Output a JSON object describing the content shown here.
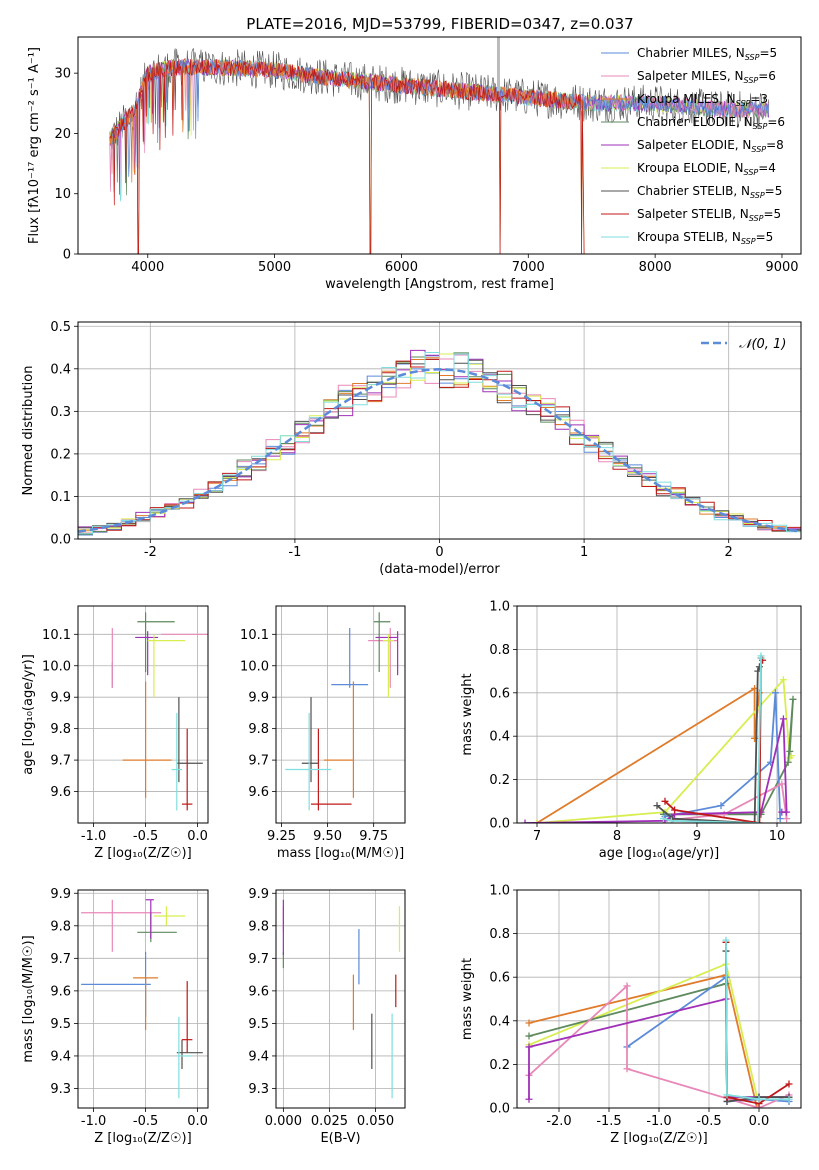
{
  "figure_title": "PLATE=2016, MJD=53799, FIBERID=0347, z=0.037",
  "legend_entries": [
    {
      "name": "Chabrier MILES, N",
      "sub": "SSP",
      "suffix": "=5",
      "color": "#5b8bd9"
    },
    {
      "name": "Salpeter MILES, N",
      "sub": "SSP",
      "suffix": "=6",
      "color": "#e888b8"
    },
    {
      "name": "Kroupa MILES, N",
      "sub": "SSP",
      "suffix": "=3",
      "color": "#e07b2a"
    },
    {
      "name": "Chabrier ELODIE, N",
      "sub": "SSP",
      "suffix": "=6",
      "color": "#5e8a5e"
    },
    {
      "name": "Salpeter ELODIE, N",
      "sub": "SSP",
      "suffix": "=8",
      "color": "#a030b8"
    },
    {
      "name": "Kroupa ELODIE, N",
      "sub": "SSP",
      "suffix": "=4",
      "color": "#d8ee50"
    },
    {
      "name": "Chabrier STELIB, N",
      "sub": "SSP",
      "suffix": "=5",
      "color": "#505050"
    },
    {
      "name": "Salpeter STELIB, N",
      "sub": "SSP",
      "suffix": "=5",
      "color": "#c01818"
    },
    {
      "name": "Kroupa STELIB, N",
      "sub": "SSP",
      "suffix": "=5",
      "color": "#80dede"
    }
  ],
  "chart_data": [
    {
      "id": "spectrum",
      "type": "line",
      "xlabel": "wavelength [Angstrom, rest frame]",
      "ylabel": "Flux [fλ10⁻¹⁷ erg cm⁻² s⁻¹ A⁻¹]",
      "xlim": [
        3450,
        9150
      ],
      "ylim": [
        0,
        36
      ],
      "xticks": [
        4000,
        5000,
        6000,
        7000,
        8000,
        9000
      ],
      "yticks": [
        0,
        10,
        20,
        30
      ],
      "legend": "top-right",
      "grid": false,
      "continuum": {
        "x": [
          3700,
          3900,
          4000,
          4200,
          4500,
          5000,
          5500,
          6000,
          6500,
          7000,
          7500,
          8000,
          8500,
          8900
        ],
        "y": [
          19,
          24,
          30,
          31,
          31,
          30.5,
          29,
          28,
          27,
          26,
          25,
          25,
          24,
          24
        ]
      },
      "drops": [
        {
          "x": 3925,
          "to": 0
        },
        {
          "x": 5755,
          "to": 0
        },
        {
          "x": 6780,
          "to": 0
        },
        {
          "x": 7420,
          "to": 0
        }
      ],
      "spike": {
        "x": 6765,
        "from": 27,
        "to": 36
      }
    },
    {
      "id": "residuals",
      "type": "step",
      "xlabel": "(data-model)/error",
      "ylabel": "Normed distribution",
      "xlim": [
        -2.5,
        2.5
      ],
      "ylim": [
        0,
        0.51
      ],
      "xticks": [
        -2,
        -1,
        0,
        1,
        2
      ],
      "yticks": [
        0,
        0.1,
        0.2,
        0.3,
        0.4,
        0.5
      ],
      "grid": true,
      "legend": "top-right",
      "reference": {
        "label": "𝒩(0, 1)",
        "mean": 0,
        "sigma": 1,
        "color": "#5b8bd9"
      },
      "bins": {
        "start": -2.5,
        "width": 0.1,
        "count": 50
      }
    },
    {
      "id": "age-vs-z",
      "type": "errorbar",
      "xlabel": "Z [log₁₀(Z/Z☉)]",
      "ylabel": "age  [log₁₀(age/yr)]",
      "xlim": [
        -1.15,
        0.1
      ],
      "ylim": [
        9.5,
        10.19
      ],
      "xticks": [
        -1.0,
        -0.5,
        0.0
      ],
      "yticks": [
        9.6,
        9.7,
        9.8,
        9.9,
        10.0,
        10.1
      ],
      "grid": true,
      "points": [
        {
          "s": 0,
          "x": -0.82,
          "xl": 1.12,
          "xh": 0.35,
          "y": 9.94,
          "yl": 9.93,
          "yh": 10.01
        },
        {
          "s": 1,
          "x": -0.82,
          "xl": 1.12,
          "xh": -0.35,
          "y": 10.1,
          "yl": 9.93,
          "yh": 10.12
        },
        {
          "s": 2,
          "x": -0.5,
          "xl": -0.72,
          "xh": -0.25,
          "y": 9.7,
          "yl": 9.58,
          "yh": 9.95
        },
        {
          "s": 3,
          "x": -0.5,
          "xl": -0.58,
          "xh": -0.22,
          "y": 10.14,
          "yl": 9.98,
          "yh": 10.17
        },
        {
          "s": 4,
          "x": -0.48,
          "xl": -0.6,
          "xh": -0.38,
          "y": 10.09,
          "yl": 9.97,
          "yh": 10.11
        },
        {
          "s": 5,
          "x": -0.42,
          "xl": -0.48,
          "xh": -0.12,
          "y": 10.08,
          "yl": 9.9,
          "yh": 10.1
        },
        {
          "s": 6,
          "x": -0.18,
          "xl": -0.2,
          "xh": 0.05,
          "y": 9.69,
          "yl": 9.63,
          "yh": 9.9
        },
        {
          "s": 7,
          "x": -0.1,
          "xl": -0.15,
          "xh": -0.05,
          "y": 9.56,
          "yl": 9.54,
          "yh": 9.8
        },
        {
          "s": 8,
          "x": -0.2,
          "xl": -0.25,
          "xh": -0.15,
          "y": 9.67,
          "yl": 9.54,
          "yh": 9.85
        }
      ]
    },
    {
      "id": "age-vs-mass",
      "type": "errorbar",
      "xlabel": "mass [log₁₀(M/M☉)]",
      "ylabel": "",
      "xlim": [
        9.22,
        9.92
      ],
      "ylim": [
        9.5,
        10.19
      ],
      "xticks": [
        9.25,
        9.5,
        9.75
      ],
      "xticklabels": [
        "9.25",
        "9.50",
        "9.75"
      ],
      "yticks": [
        9.6,
        9.7,
        9.8,
        9.9,
        10.0,
        10.1
      ],
      "grid": true,
      "points": [
        {
          "s": 0,
          "x": 9.62,
          "xl": 9.52,
          "xh": 9.72,
          "y": 9.94,
          "yl": 9.93,
          "yh": 10.12
        },
        {
          "s": 1,
          "x": 9.84,
          "xl": 9.72,
          "xh": 9.88,
          "y": 10.08,
          "yl": 9.93,
          "yh": 10.12
        },
        {
          "s": 2,
          "x": 9.64,
          "xl": 9.48,
          "xh": 9.64,
          "y": 9.7,
          "yl": 9.58,
          "yh": 9.95
        },
        {
          "s": 3,
          "x": 9.78,
          "xl": 9.75,
          "xh": 9.84,
          "y": 10.14,
          "yl": 9.98,
          "yh": 10.17
        },
        {
          "s": 4,
          "x": 9.88,
          "xl": 9.76,
          "xh": 9.88,
          "y": 10.09,
          "yl": 9.97,
          "yh": 10.11
        },
        {
          "s": 5,
          "x": 9.83,
          "xl": 9.8,
          "xh": 9.86,
          "y": 10.08,
          "yl": 9.9,
          "yh": 10.1
        },
        {
          "s": 6,
          "x": 9.41,
          "xl": 9.36,
          "xh": 9.45,
          "y": 9.69,
          "yl": 9.63,
          "yh": 9.9
        },
        {
          "s": 7,
          "x": 9.45,
          "xl": 9.41,
          "xh": 9.63,
          "y": 9.56,
          "yl": 9.54,
          "yh": 9.8
        },
        {
          "s": 8,
          "x": 9.4,
          "xl": 9.27,
          "xh": 9.52,
          "y": 9.67,
          "yl": 9.54,
          "yh": 9.85
        }
      ]
    },
    {
      "id": "weight-vs-age",
      "type": "line",
      "xlabel": "age  [log₁₀(age/yr)]",
      "ylabel": "mass weight",
      "xlim": [
        6.75,
        10.3
      ],
      "ylim": [
        0,
        1.0
      ],
      "xticks": [
        7,
        8,
        9,
        10
      ],
      "yticks": [
        0,
        0.2,
        0.4,
        0.6,
        0.8,
        1.0
      ],
      "grid": true,
      "series": [
        {
          "s": 2,
          "x": [
            7.0,
            9.72,
            9.72,
            9.78,
            9.72
          ],
          "y": [
            0.0,
            0.62,
            0.39,
            0.6,
            0.39
          ]
        },
        {
          "s": 5,
          "x": [
            7.0,
            8.6,
            10.08,
            10.16,
            10.18
          ],
          "y": [
            0.0,
            0.05,
            0.66,
            0.3,
            0.31
          ]
        },
        {
          "s": 3,
          "x": [
            8.58,
            9.8,
            10.14,
            10.2,
            10.16
          ],
          "y": [
            0.04,
            0.04,
            0.28,
            0.57,
            0.33
          ]
        },
        {
          "s": 0,
          "x": [
            8.6,
            9.3,
            9.92,
            9.98,
            10.04
          ],
          "y": [
            0.03,
            0.08,
            0.28,
            0.6,
            0.02
          ]
        },
        {
          "s": 1,
          "x": [
            8.58,
            9.34,
            10.06,
            10.12
          ],
          "y": [
            0.01,
            0.04,
            0.18,
            0.02
          ]
        },
        {
          "s": 4,
          "x": [
            6.85,
            8.6,
            8.72,
            9.8,
            10.08,
            10.12,
            10.06
          ],
          "y": [
            0.0,
            0.01,
            0.04,
            0.05,
            0.48,
            0.05,
            0.05
          ]
        },
        {
          "s": 6,
          "x": [
            8.5,
            8.7,
            9.72,
            9.76,
            9.78
          ],
          "y": [
            0.08,
            0.02,
            0.0,
            0.7,
            0.72
          ]
        },
        {
          "s": 7,
          "x": [
            8.6,
            8.72,
            9.78,
            9.8,
            9.82
          ],
          "y": [
            0.1,
            0.06,
            0.0,
            0.76,
            0.75
          ]
        },
        {
          "s": 8,
          "x": [
            8.58,
            8.68,
            9.76,
            9.8,
            9.8
          ],
          "y": [
            0.02,
            0.01,
            0.0,
            0.77,
            0.76
          ]
        }
      ]
    },
    {
      "id": "mass-vs-z",
      "type": "errorbar",
      "xlabel": "Z [log₁₀(Z/Z☉)]",
      "ylabel": "mass [log₁₀(M/M☉)]",
      "xlim": [
        -1.15,
        0.1
      ],
      "ylim": [
        9.24,
        9.91
      ],
      "xticks": [
        -1.0,
        -0.5,
        0.0
      ],
      "yticks": [
        9.3,
        9.4,
        9.5,
        9.6,
        9.7,
        9.8,
        9.9
      ],
      "grid": true,
      "points": [
        {
          "s": 0,
          "x": -0.5,
          "xl": -1.12,
          "xh": -0.45,
          "y": 9.62,
          "yl": 9.52,
          "yh": 9.72
        },
        {
          "s": 1,
          "x": -0.82,
          "xl": -1.12,
          "xh": -0.35,
          "y": 9.84,
          "yl": 9.72,
          "yh": 9.88
        },
        {
          "s": 2,
          "x": -0.5,
          "xl": -0.62,
          "xh": -0.38,
          "y": 9.64,
          "yl": 9.48,
          "yh": 9.64
        },
        {
          "s": 3,
          "x": -0.45,
          "xl": -0.58,
          "xh": -0.2,
          "y": 9.78,
          "yl": 9.75,
          "yh": 9.84
        },
        {
          "s": 4,
          "x": -0.45,
          "xl": -0.5,
          "xh": -0.42,
          "y": 9.88,
          "yl": 9.76,
          "yh": 9.88
        },
        {
          "s": 5,
          "x": -0.3,
          "xl": -0.42,
          "xh": -0.12,
          "y": 9.83,
          "yl": 9.8,
          "yh": 9.86
        },
        {
          "s": 6,
          "x": -0.15,
          "xl": -0.2,
          "xh": 0.05,
          "y": 9.41,
          "yl": 9.36,
          "yh": 9.45
        },
        {
          "s": 7,
          "x": -0.1,
          "xl": -0.15,
          "xh": -0.05,
          "y": 9.45,
          "yl": 9.41,
          "yh": 9.63
        },
        {
          "s": 8,
          "x": -0.18,
          "xl": -0.2,
          "xh": -0.05,
          "y": 9.4,
          "yl": 9.27,
          "yh": 9.52
        }
      ]
    },
    {
      "id": "mass-vs-ebv",
      "type": "errorbar",
      "xlabel": "E(B-V)",
      "ylabel": "",
      "xlim": [
        -0.004,
        0.066
      ],
      "ylim": [
        9.24,
        9.91
      ],
      "xticks": [
        0.0,
        0.025,
        0.05
      ],
      "xticklabels": [
        "0.000",
        "0.025",
        "0.050"
      ],
      "yticks": [
        9.3,
        9.4,
        9.5,
        9.6,
        9.7,
        9.8,
        9.9
      ],
      "grid": true,
      "points": [
        {
          "s": 0,
          "x": 0.041,
          "y": 9.72,
          "yl": 9.62,
          "yh": 9.79
        },
        {
          "s": 1,
          "x": 0.0,
          "y": 9.82,
          "yl": 9.78,
          "yh": 9.86
        },
        {
          "s": 2,
          "x": 0.038,
          "y": 9.57,
          "yl": 9.48,
          "yh": 9.65
        },
        {
          "s": 3,
          "x": 0.0,
          "y": 9.7,
          "yl": 9.67,
          "yh": 9.72
        },
        {
          "s": 4,
          "x": 0.0,
          "y": 9.8,
          "yl": 9.71,
          "yh": 9.88
        },
        {
          "s": 5,
          "x": 0.063,
          "y": 9.79,
          "yl": 9.72,
          "yh": 9.86
        },
        {
          "s": 6,
          "x": 0.048,
          "y": 9.45,
          "yl": 9.36,
          "yh": 9.53
        },
        {
          "s": 7,
          "x": 0.061,
          "y": 9.6,
          "yl": 9.55,
          "yh": 9.65
        },
        {
          "s": 8,
          "x": 0.059,
          "y": 9.4,
          "yl": 9.27,
          "yh": 9.53
        }
      ]
    },
    {
      "id": "weight-vs-z",
      "type": "line",
      "xlabel": "Z [log₁₀(Z/Z☉)]",
      "ylabel": "mass weight",
      "xlim": [
        -2.42,
        0.42
      ],
      "ylim": [
        0,
        1.0
      ],
      "xticks": [
        -2.0,
        -1.5,
        -1.0,
        -0.5,
        0.0
      ],
      "yticks": [
        0,
        0.2,
        0.4,
        0.6,
        0.8,
        1.0
      ],
      "grid": true,
      "series": [
        {
          "s": 2,
          "x": [
            -2.3,
            -0.33,
            -0.02
          ],
          "y": [
            0.39,
            0.61,
            0.0
          ]
        },
        {
          "s": 5,
          "x": [
            -2.3,
            -0.33,
            -0.02
          ],
          "y": [
            0.29,
            0.66,
            0.05
          ]
        },
        {
          "s": 3,
          "x": [
            -2.3,
            -0.33,
            -0.32,
            0.0,
            0.3
          ],
          "y": [
            0.33,
            0.57,
            0.05,
            0.05,
            0.05
          ]
        },
        {
          "s": 0,
          "x": [
            -1.32,
            -0.33,
            -0.32,
            0.0,
            0.3
          ],
          "y": [
            0.28,
            0.6,
            0.03,
            0.04,
            0.03
          ]
        },
        {
          "s": 1,
          "x": [
            -2.3,
            -1.32,
            -1.32,
            0.0,
            0.3
          ],
          "y": [
            0.15,
            0.56,
            0.18,
            0.0,
            0.06
          ]
        },
        {
          "s": 4,
          "x": [
            -2.3,
            -2.3,
            -0.33,
            -0.32,
            0.0,
            0.3
          ],
          "y": [
            0.04,
            0.28,
            0.5,
            0.05,
            0.05,
            0.05
          ]
        },
        {
          "s": 6,
          "x": [
            -0.33,
            -0.32,
            0.0,
            0.3
          ],
          "y": [
            0.72,
            0.03,
            0.05,
            0.05
          ]
        },
        {
          "s": 7,
          "x": [
            -0.33,
            -0.32,
            0.0,
            0.3
          ],
          "y": [
            0.76,
            0.05,
            0.02,
            0.11
          ]
        },
        {
          "s": 8,
          "x": [
            -0.33,
            -0.32,
            0.0,
            0.3
          ],
          "y": [
            0.77,
            0.06,
            0.04,
            0.04
          ]
        }
      ]
    }
  ]
}
